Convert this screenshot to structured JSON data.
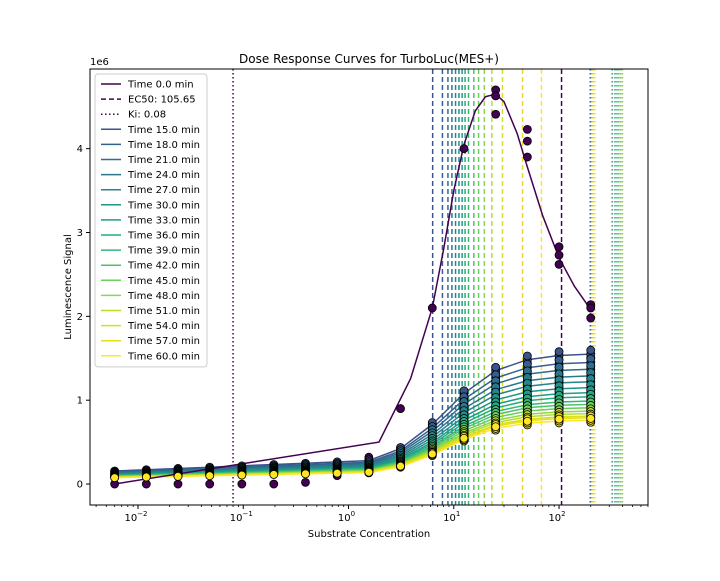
{
  "chart_data": {
    "type": "line",
    "title": "Dose Response Curves for TurboLuc(MES+)",
    "xlabel": "Substrate Concentration",
    "ylabel": "Luminescence Signal",
    "y_offset_label": "1e6",
    "xscale": "log",
    "xlim": [
      0.0035,
      700
    ],
    "ylim": [
      -250000,
      4950000
    ],
    "grid": false,
    "legend_placement": "top-left",
    "x_ticks": [
      {
        "value": 0.01,
        "base": "10",
        "exp": "−2"
      },
      {
        "value": 0.1,
        "base": "10",
        "exp": "−1"
      },
      {
        "value": 1,
        "base": "10",
        "exp": "0"
      },
      {
        "value": 10,
        "base": "10",
        "exp": "1"
      },
      {
        "value": 100,
        "base": "10",
        "exp": "2"
      }
    ],
    "y_ticks": [
      {
        "value": 0,
        "label": "0"
      },
      {
        "value": 1000000,
        "label": "1"
      },
      {
        "value": 2000000,
        "label": "2"
      },
      {
        "value": 3000000,
        "label": "3"
      },
      {
        "value": 4000000,
        "label": "4"
      }
    ],
    "concentrations": [
      0.006,
      0.012,
      0.024,
      0.048,
      0.097,
      0.195,
      0.39,
      0.78,
      1.56,
      3.12,
      6.25,
      12.5,
      25,
      50,
      100,
      200
    ],
    "time0": {
      "name": "Time 0.0 min",
      "color": "#440154",
      "fit_x": [
        0.006,
        1.95,
        3.9,
        6.25,
        8,
        10,
        12.5,
        16,
        20,
        25,
        30,
        40,
        50,
        70,
        100,
        140,
        200
      ],
      "fit_y": [
        0,
        500000,
        1260000,
        2100000,
        2800000,
        3500000,
        4050000,
        4450000,
        4620000,
        4650000,
        4560000,
        4180000,
        3780000,
        3200000,
        2700000,
        2360000,
        2080000
      ],
      "points": [
        [
          0.006,
          0
        ],
        [
          0.012,
          0
        ],
        [
          0.024,
          0
        ],
        [
          0.048,
          0
        ],
        [
          0.097,
          0
        ],
        [
          0.195,
          0
        ],
        [
          0.39,
          20000
        ],
        [
          0.78,
          100000
        ],
        [
          1.56,
          320000
        ],
        [
          3.12,
          900000
        ],
        [
          6.25,
          2100000
        ],
        [
          12.5,
          4000000
        ],
        [
          25,
          4700000
        ],
        [
          25,
          4630000
        ],
        [
          25,
          4410000
        ],
        [
          50,
          4230000
        ],
        [
          50,
          4090000
        ],
        [
          50,
          3900000
        ],
        [
          100,
          2830000
        ],
        [
          100,
          2730000
        ],
        [
          100,
          2620000
        ],
        [
          200,
          2140000
        ],
        [
          200,
          2100000
        ],
        [
          200,
          1980000
        ]
      ],
      "ec50_line": {
        "label": "EC50: 105.65",
        "value": 105.65
      },
      "ki_line": {
        "label": "Ki: 0.08",
        "value": 0.08
      }
    },
    "series": [
      {
        "name": "Time 15.0 min",
        "ymax": 1550000,
        "color": "#3b528b",
        "ec50": 6.3,
        "ki": 198
      },
      {
        "name": "Time 18.0 min",
        "ymax": 1450000,
        "color": "#355f8d",
        "ec50": 7.8,
        "ki": 200
      },
      {
        "name": "Time 21.0 min",
        "ymax": 1370000,
        "color": "#2f6c8e",
        "ec50": 8.8,
        "ki": 202
      },
      {
        "name": "Time 24.0 min",
        "ymax": 1290000,
        "color": "#2a788e",
        "ec50": 9.6,
        "ki": 205
      },
      {
        "name": "Time 27.0 min",
        "ymax": 1220000,
        "color": "#25848e",
        "ec50": 10.4,
        "ki": 208
      },
      {
        "name": "Time 30.0 min",
        "ymax": 1150000,
        "color": "#21918c",
        "ec50": 11.2,
        "ki": 212
      },
      {
        "name": "Time 33.0 min",
        "ymax": 1090000,
        "color": "#1e9c89",
        "ec50": 12.0,
        "ki": 320
      },
      {
        "name": "Time 36.0 min",
        "ymax": 1040000,
        "color": "#25ab82",
        "ec50": 12.8,
        "ki": 340
      },
      {
        "name": "Time 39.0 min",
        "ymax": 990000,
        "color": "#35b779",
        "ec50": 13.8,
        "ki": 355
      },
      {
        "name": "Time 42.0 min",
        "ymax": 950000,
        "color": "#4ec36b",
        "ec50": 15.5,
        "ki": 370
      },
      {
        "name": "Time 45.0 min",
        "ymax": 910000,
        "color": "#6ccd5a",
        "ec50": 17.2,
        "ki": 385
      },
      {
        "name": "Time 48.0 min",
        "ymax": 870000,
        "color": "#8fd744",
        "ec50": 19.5,
        "ki": 400
      },
      {
        "name": "Time 51.0 min",
        "ymax": 840000,
        "color": "#b5de2b",
        "ec50": 23.0,
        "ki": 205
      },
      {
        "name": "Time 54.0 min",
        "ymax": 810000,
        "color": "#d8e219",
        "ec50": 29.0,
        "ki": 210
      },
      {
        "name": "Time 57.0 min",
        "ymax": 790000,
        "color": "#ecdb1b",
        "ec50": 45.0,
        "ki": 215
      },
      {
        "name": "Time 60.0 min",
        "ymax": 760000,
        "color": "#fde725",
        "ec50": 68.0,
        "ki": 220
      }
    ]
  }
}
